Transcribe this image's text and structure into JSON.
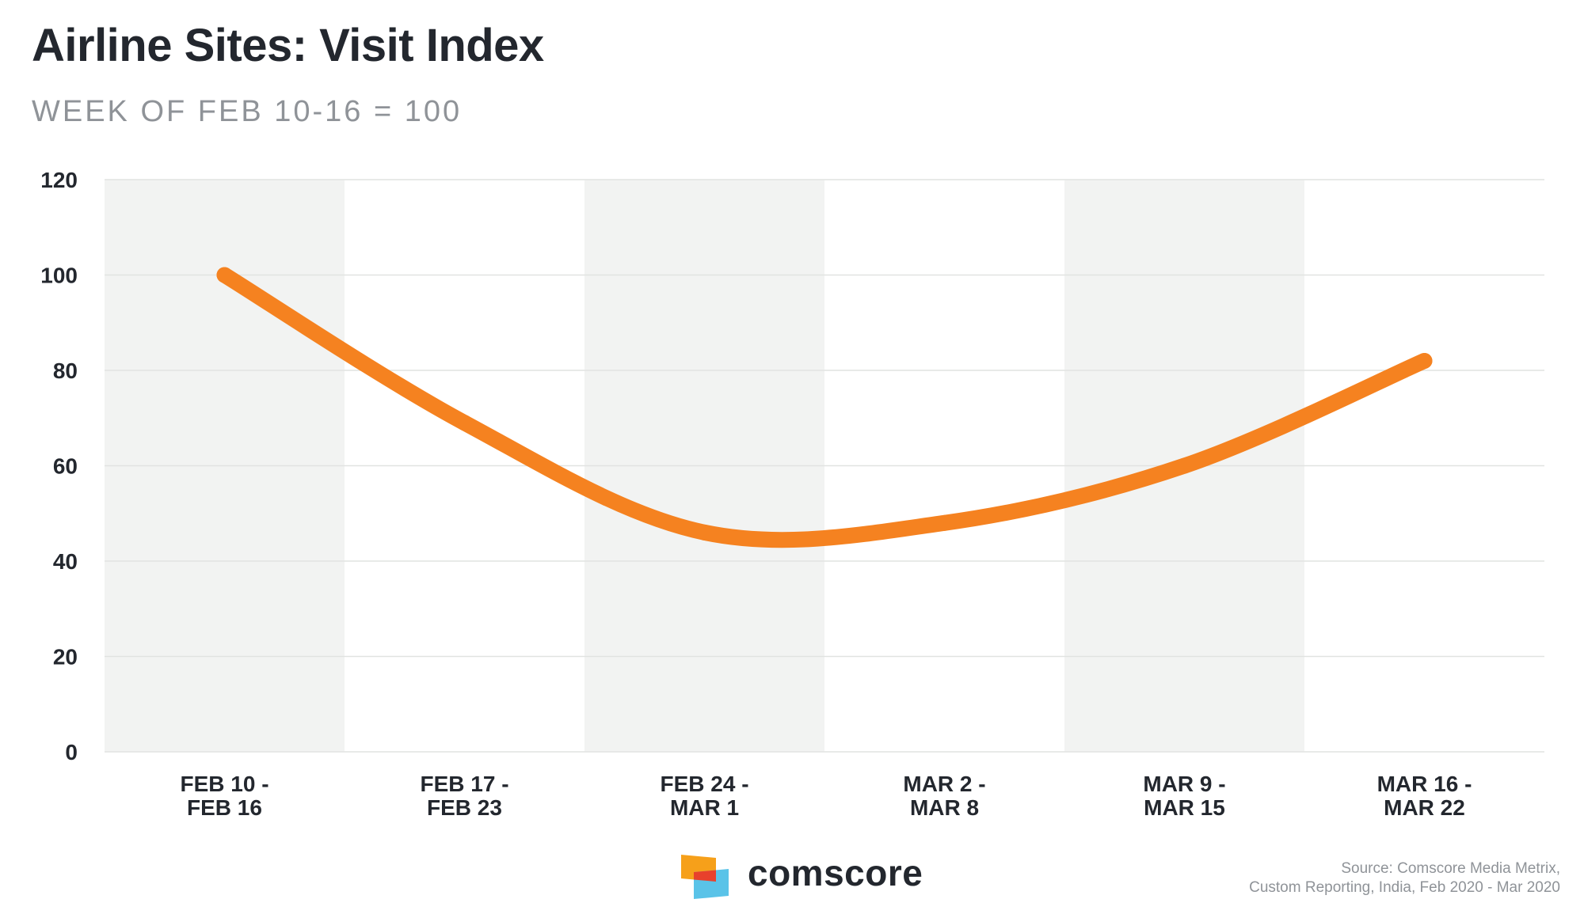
{
  "header": {
    "title": "Airline Sites: Visit Index",
    "subtitle": "WEEK OF FEB 10-16 = 100"
  },
  "chart_data": {
    "type": "line",
    "title": "Airline Sites: Visit Index",
    "subtitle": "WEEK OF FEB 10-16 = 100",
    "categories": [
      [
        "FEB 10 -",
        "FEB 16"
      ],
      [
        "FEB 17 -",
        "FEB 23"
      ],
      [
        "FEB 24 -",
        "MAR 1"
      ],
      [
        "MAR 2 -",
        "MAR 8"
      ],
      [
        "MAR 9 -",
        "MAR 15"
      ],
      [
        "MAR 16 -",
        "MAR 22"
      ]
    ],
    "series": [
      {
        "values": [
          100,
          69,
          46,
          48,
          60,
          82
        ],
        "color": "#f58220"
      }
    ],
    "ylim": [
      0,
      120
    ],
    "yticks": [
      "0",
      "20",
      "40",
      "60",
      "80",
      "100",
      "120"
    ],
    "xlabel": "",
    "ylabel": "",
    "grid": true,
    "alternating_bands": true,
    "band_color": "#f2f3f2",
    "gridline_color": "#e1e3e1",
    "line_style": "smooth"
  },
  "footer": {
    "logo_icon": "comscore-logo-icon",
    "logo_text": "comscore",
    "logo_colors": {
      "orange": "#f6a01a",
      "red": "#e8412c",
      "blue": "#5ac3e8"
    },
    "source_line1": "Source: Comscore Media Metrix,",
    "source_line2": "Custom Reporting, India, Feb 2020 - Mar 2020"
  }
}
